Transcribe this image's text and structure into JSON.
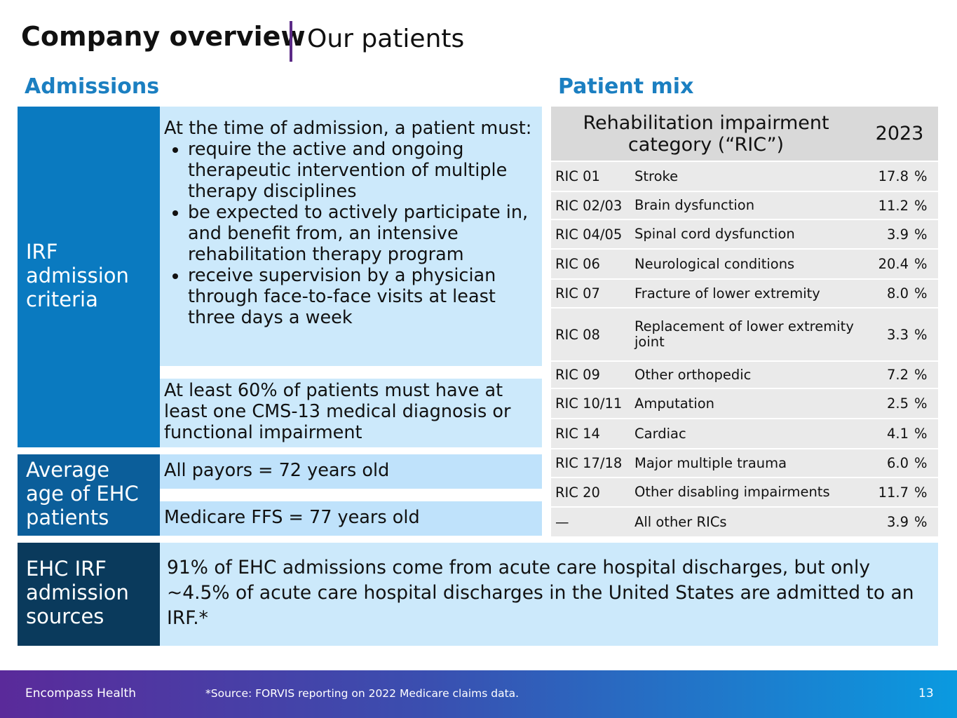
{
  "header": {
    "title": "Company overview",
    "subtitle": "Our patients"
  },
  "admissions": {
    "heading": "Admissions",
    "criteria": {
      "label": "IRF admission criteria",
      "intro": "At the time of admission, a patient must:",
      "bullets": [
        "require the active and ongoing therapeutic intervention of multiple therapy disciplines",
        "be expected to actively participate in, and benefit from, an intensive rehabilitation therapy program",
        "receive supervision by a physician through face-to-face visits at least three days a week"
      ],
      "note": "At least 60% of patients must have at least one CMS-13 medical diagnosis or functional impairment"
    },
    "age": {
      "label": "Average age of EHC patients",
      "items": [
        "All payors = 72 years old",
        "Medicare FFS = 77 years old"
      ]
    },
    "sources": {
      "label": "EHC IRF admission sources",
      "text": "91% of EHC admissions come from acute care hospital discharges, but only ~4.5% of acute care hospital discharges in the United States are admitted to an IRF.*"
    }
  },
  "patient_mix": {
    "heading": "Patient mix",
    "table": {
      "columns": [
        "Rehabilitation impairment category (“RIC”)",
        "2023"
      ],
      "rows": [
        [
          "RIC 01",
          "Stroke",
          "17.8",
          "%"
        ],
        [
          "RIC 02/03",
          "Brain dysfunction",
          "11.2",
          "%"
        ],
        [
          "RIC 04/05",
          "Spinal cord dysfunction",
          "3.9",
          "%"
        ],
        [
          "RIC 06",
          "Neurological conditions",
          "20.4",
          "%"
        ],
        [
          "RIC 07",
          "Fracture of lower extremity",
          "8.0",
          "%"
        ],
        [
          "RIC 08",
          "Replacement of lower extremity joint",
          "3.3",
          "%"
        ],
        [
          "RIC 09",
          "Other orthopedic",
          "7.2",
          "%"
        ],
        [
          "RIC 10/11",
          "Amputation",
          "2.5",
          "%"
        ],
        [
          "RIC 14",
          "Cardiac",
          "4.1",
          "%"
        ],
        [
          "RIC 17/18",
          "Major multiple trauma",
          "6.0",
          "%"
        ],
        [
          "RIC 20",
          "Other disabling impairments",
          "11.7",
          "%"
        ],
        [
          "—",
          "All other RICs",
          "3.9",
          "%"
        ]
      ]
    }
  },
  "footer": {
    "company": "Encompass Health",
    "source": "*Source: FORVIS reporting on 2022 Medicare claims data.",
    "page": "13"
  }
}
